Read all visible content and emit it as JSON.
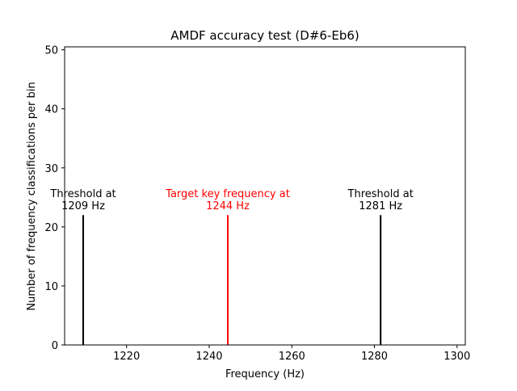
{
  "chart_data": {
    "type": "line",
    "title": "AMDF accuracy test (D#6-Eb6)",
    "xlabel": "Frequency (Hz)",
    "ylabel": "Number of frequency classifications per bin",
    "xlim": [
      1205,
      1302
    ],
    "ylim": [
      0,
      50.5
    ],
    "xticks": [
      1220,
      1240,
      1260,
      1280,
      1300
    ],
    "yticks": [
      0,
      10,
      20,
      30,
      40,
      50
    ],
    "grid": false,
    "vlines": [
      {
        "x": 1209.5,
        "ymax": 22,
        "color": "#000000",
        "label": [
          "Threshold at",
          "1209 Hz"
        ]
      },
      {
        "x": 1244.5,
        "ymax": 22,
        "color": "#ff0000",
        "label": [
          "Target key frequency at",
          "1244 Hz"
        ]
      },
      {
        "x": 1281.5,
        "ymax": 22,
        "color": "#000000",
        "label": [
          "Threshold at",
          "1281 Hz"
        ]
      }
    ]
  }
}
